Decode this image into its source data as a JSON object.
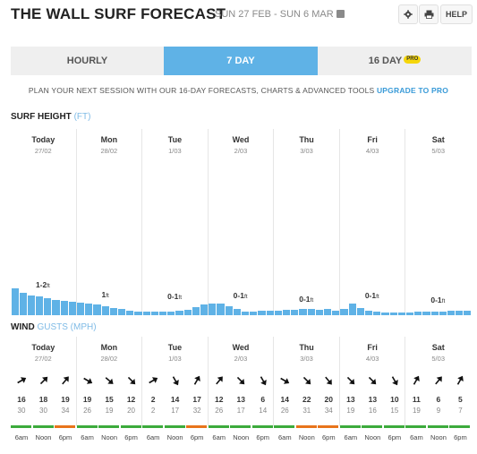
{
  "header": {
    "title": "THE WALL SURF FORECAST",
    "dates": "SUN 27 FEB - SUN 6 MAR",
    "help": "HELP"
  },
  "tabs": [
    {
      "label": "HOURLY",
      "active": false
    },
    {
      "label": "7 DAY",
      "active": true
    },
    {
      "label": "16 DAY",
      "active": false,
      "badge": "PRO"
    }
  ],
  "promo": {
    "text": "PLAN YOUR NEXT SESSION WITH OUR 16-DAY FORECASTS, CHARTS & ADVANCED TOOLS",
    "link": "UPGRADE TO PRO"
  },
  "surf_section": {
    "title": "SURF HEIGHT",
    "unit": "(FT)"
  },
  "wind_section": {
    "title": "WIND",
    "unit": "GUSTS (MPH)"
  },
  "days": [
    {
      "name": "Today",
      "date": "27/02",
      "height_label": "1-2",
      "unit": "ft"
    },
    {
      "name": "Mon",
      "date": "28/02",
      "height_label": "1",
      "unit": "ft"
    },
    {
      "name": "Tue",
      "date": "1/03",
      "height_label": "0-1",
      "unit": "ft"
    },
    {
      "name": "Wed",
      "date": "2/03",
      "height_label": "0-1",
      "unit": "ft"
    },
    {
      "name": "Thu",
      "date": "3/03",
      "height_label": "0-1",
      "unit": "ft"
    },
    {
      "name": "Fri",
      "date": "4/03",
      "height_label": "0-1",
      "unit": "ft"
    },
    {
      "name": "Sat",
      "date": "5/03",
      "height_label": "0-1",
      "unit": "ft"
    }
  ],
  "surf_levels": [
    1.0,
    0.85,
    0.75,
    0.7,
    0.62,
    0.58,
    0.55,
    0.5,
    0.48,
    0.44,
    0.4,
    0.35,
    0.28,
    0.22,
    0.18,
    0.14,
    0.12,
    0.12,
    0.12,
    0.14,
    0.16,
    0.2,
    0.3,
    0.4,
    0.45,
    0.42,
    0.35,
    0.22,
    0.12,
    0.14,
    0.16,
    0.18,
    0.18,
    0.2,
    0.2,
    0.22,
    0.22,
    0.2,
    0.22,
    0.18,
    0.22,
    0.42,
    0.28,
    0.18,
    0.12,
    0.1,
    0.1,
    0.1,
    0.1,
    0.12,
    0.14,
    0.12,
    0.14,
    0.16,
    0.16,
    0.18
  ],
  "wind": [
    [
      {
        "time": "6am",
        "dir": 60,
        "speed": "16",
        "gust": "30",
        "color": "#3cab3c"
      },
      {
        "time": "Noon",
        "dir": 45,
        "speed": "18",
        "gust": "30",
        "color": "#3cab3c"
      },
      {
        "time": "6pm",
        "dir": 40,
        "speed": "19",
        "gust": "34",
        "color": "#e8741b"
      }
    ],
    [
      {
        "time": "6am",
        "dir": 120,
        "speed": "19",
        "gust": "26",
        "color": "#3cab3c"
      },
      {
        "time": "Noon",
        "dir": 130,
        "speed": "15",
        "gust": "19",
        "color": "#3cab3c"
      },
      {
        "time": "6pm",
        "dir": 135,
        "speed": "12",
        "gust": "20",
        "color": "#3cab3c"
      }
    ],
    [
      {
        "time": "6am",
        "dir": 60,
        "speed": "2",
        "gust": "2",
        "color": "#3cab3c"
      },
      {
        "time": "Noon",
        "dir": 150,
        "speed": "14",
        "gust": "17",
        "color": "#3cab3c"
      },
      {
        "time": "6pm",
        "dir": 30,
        "speed": "17",
        "gust": "32",
        "color": "#e8741b"
      }
    ],
    [
      {
        "time": "6am",
        "dir": 40,
        "speed": "12",
        "gust": "26",
        "color": "#3cab3c"
      },
      {
        "time": "Noon",
        "dir": 135,
        "speed": "13",
        "gust": "17",
        "color": "#3cab3c"
      },
      {
        "time": "6pm",
        "dir": 150,
        "speed": "6",
        "gust": "14",
        "color": "#3cab3c"
      }
    ],
    [
      {
        "time": "6am",
        "dir": 120,
        "speed": "14",
        "gust": "26",
        "color": "#3cab3c"
      },
      {
        "time": "Noon",
        "dir": 135,
        "speed": "22",
        "gust": "31",
        "color": "#e8741b"
      },
      {
        "time": "6pm",
        "dir": 140,
        "speed": "20",
        "gust": "34",
        "color": "#e8741b"
      }
    ],
    [
      {
        "time": "6am",
        "dir": 135,
        "speed": "13",
        "gust": "19",
        "color": "#3cab3c"
      },
      {
        "time": "Noon",
        "dir": 135,
        "speed": "13",
        "gust": "16",
        "color": "#3cab3c"
      },
      {
        "time": "6pm",
        "dir": 150,
        "speed": "10",
        "gust": "15",
        "color": "#3cab3c"
      }
    ],
    [
      {
        "time": "6am",
        "dir": 30,
        "speed": "11",
        "gust": "19",
        "color": "#3cab3c"
      },
      {
        "time": "Noon",
        "dir": 40,
        "speed": "6",
        "gust": "9",
        "color": "#3cab3c"
      },
      {
        "time": "6pm",
        "dir": 30,
        "speed": "5",
        "gust": "7",
        "color": "#3cab3c"
      }
    ]
  ],
  "colors": {
    "accent": "#5fb2e6",
    "good": "#3cab3c",
    "strong": "#e8741b"
  },
  "icons": {
    "settings": "gear-icon",
    "print": "print-icon",
    "calendar": "calendar-icon"
  }
}
